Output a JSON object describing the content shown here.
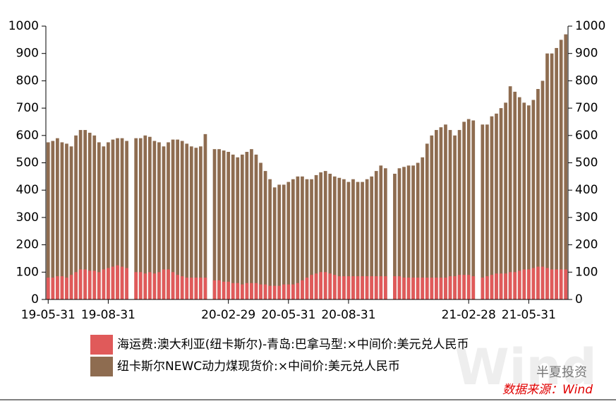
{
  "chart_data": {
    "type": "bar",
    "categories": [
      "19-05-31",
      null,
      null,
      null,
      null,
      null,
      null,
      null,
      null,
      null,
      null,
      null,
      null,
      "19-08-31",
      null,
      null,
      null,
      null,
      null,
      null,
      null,
      null,
      null,
      null,
      null,
      null,
      null,
      null,
      null,
      null,
      null,
      null,
      null,
      null,
      null,
      null,
      null,
      null,
      null,
      "20-02-29",
      null,
      null,
      null,
      null,
      null,
      null,
      null,
      null,
      null,
      null,
      null,
      null,
      "20-05-31",
      null,
      null,
      null,
      null,
      null,
      null,
      null,
      null,
      null,
      null,
      null,
      null,
      "20-08-31",
      null,
      null,
      null,
      null,
      null,
      null,
      null,
      null,
      null,
      null,
      null,
      null,
      null,
      null,
      null,
      null,
      null,
      null,
      null,
      null,
      null,
      null,
      null,
      null,
      null,
      "21-02-28",
      null,
      null,
      null,
      null,
      null,
      null,
      null,
      null,
      null,
      null,
      null,
      null,
      "21-05-31",
      null,
      null,
      null,
      null,
      null,
      null,
      null,
      null
    ],
    "series": [
      {
        "name": "纽卡斯尔NEWC动力煤现货价:×中间价:美元兑人民币",
        "color": "#8e6c50",
        "axis": "y2",
        "values": [
          575,
          580,
          590,
          575,
          570,
          560,
          600,
          620,
          620,
          610,
          600,
          575,
          560,
          575,
          585,
          590,
          590,
          580,
          null,
          590,
          590,
          600,
          595,
          580,
          575,
          560,
          575,
          585,
          585,
          580,
          570,
          560,
          555,
          560,
          605,
          null,
          550,
          550,
          545,
          540,
          530,
          520,
          530,
          540,
          550,
          530,
          500,
          470,
          440,
          410,
          420,
          420,
          430,
          440,
          450,
          450,
          440,
          440,
          455,
          465,
          470,
          460,
          450,
          445,
          440,
          430,
          440,
          430,
          430,
          440,
          450,
          470,
          490,
          480,
          null,
          460,
          480,
          485,
          490,
          490,
          500,
          520,
          570,
          600,
          620,
          630,
          640,
          620,
          600,
          620,
          650,
          660,
          655,
          null,
          640,
          640,
          670,
          680,
          700,
          720,
          780,
          760,
          740,
          720,
          710,
          730,
          770,
          800,
          900,
          900,
          920,
          950,
          970
        ]
      },
      {
        "name": "海运费:澳大利亚(纽卡斯尔)-青岛:巴拿马型:×中间价:美元兑人民币",
        "color": "#e05a5a",
        "values": [
          80,
          80,
          85,
          85,
          80,
          90,
          100,
          110,
          110,
          105,
          105,
          100,
          110,
          115,
          120,
          125,
          120,
          115,
          null,
          100,
          100,
          95,
          100,
          95,
          100,
          110,
          110,
          100,
          90,
          85,
          80,
          80,
          80,
          80,
          80,
          null,
          70,
          70,
          65,
          65,
          60,
          60,
          55,
          60,
          60,
          60,
          55,
          55,
          50,
          50,
          50,
          55,
          55,
          55,
          60,
          70,
          80,
          90,
          95,
          100,
          100,
          95,
          90,
          85,
          85,
          85,
          85,
          85,
          85,
          85,
          85,
          85,
          85,
          85,
          null,
          85,
          85,
          80,
          80,
          80,
          80,
          80,
          80,
          80,
          80,
          80,
          80,
          85,
          85,
          90,
          90,
          90,
          85,
          null,
          80,
          85,
          90,
          95,
          95,
          95,
          100,
          100,
          105,
          110,
          110,
          115,
          120,
          120,
          115,
          110,
          110,
          110,
          110
        ]
      }
    ],
    "ylim": [
      0,
      1000
    ],
    "yticks": [
      0,
      100,
      200,
      300,
      400,
      500,
      600,
      700,
      800,
      900,
      1000
    ],
    "y2lim": [
      0,
      1000
    ],
    "y2ticks": [
      0,
      100,
      200,
      300,
      400,
      500,
      600,
      700,
      800,
      900,
      1000
    ],
    "legend": "bottom",
    "annotations": [
      "Wind",
      "半夏投资",
      "数据来源：Wind"
    ]
  }
}
